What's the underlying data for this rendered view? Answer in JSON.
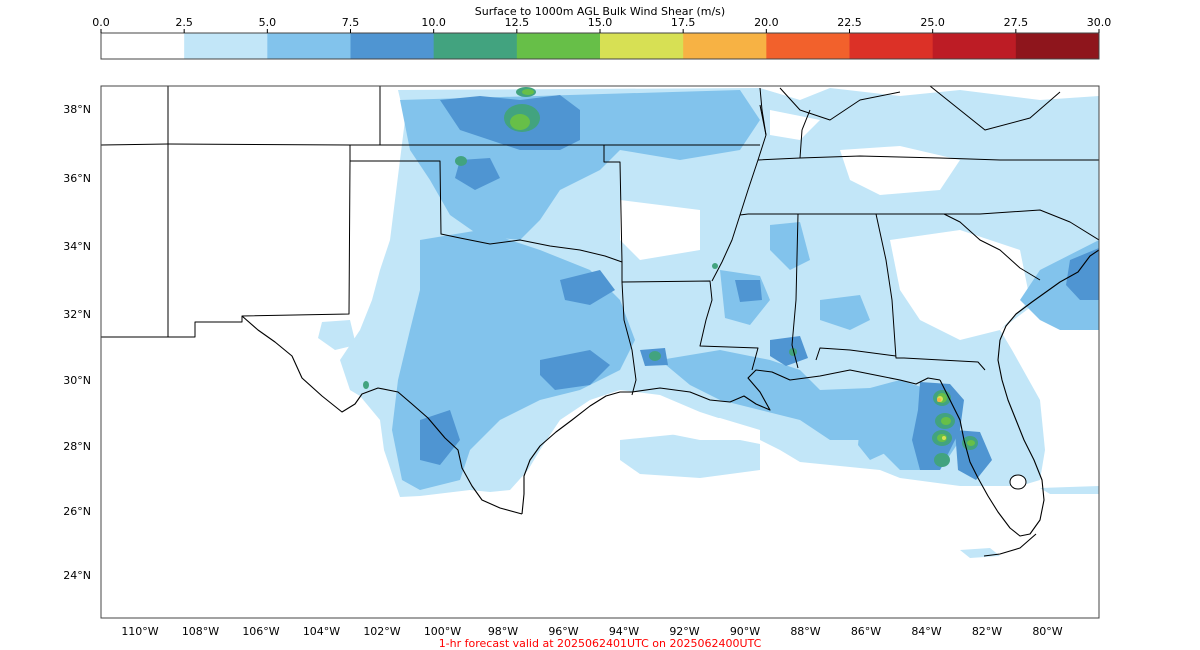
{
  "title": "Surface to 1000m AGL Bulk Wind Shear (m/s)",
  "footer": "1-hr forecast valid at 2025062401UTC on 2025062400UTC",
  "colorbar": {
    "ticks": [
      "0.0",
      "2.5",
      "5.0",
      "7.5",
      "10.0",
      "12.5",
      "15.0",
      "17.5",
      "20.0",
      "22.5",
      "25.0",
      "27.5",
      "30.0"
    ],
    "bins": [
      {
        "min": 0.0,
        "max": 2.5,
        "color": "#ffffff"
      },
      {
        "min": 2.5,
        "max": 5.0,
        "color": "#c2e6f8"
      },
      {
        "min": 5.0,
        "max": 7.5,
        "color": "#82c3ec"
      },
      {
        "min": 7.5,
        "max": 10.0,
        "color": "#4f95d2"
      },
      {
        "min": 10.0,
        "max": 12.5,
        "color": "#42a37f"
      },
      {
        "min": 12.5,
        "max": 15.0,
        "color": "#67bf48"
      },
      {
        "min": 15.0,
        "max": 17.5,
        "color": "#d7e054"
      },
      {
        "min": 17.5,
        "max": 20.0,
        "color": "#f7b244"
      },
      {
        "min": 20.0,
        "max": 22.5,
        "color": "#f2612c"
      },
      {
        "min": 22.5,
        "max": 25.0,
        "color": "#dc3127"
      },
      {
        "min": 25.0,
        "max": 27.5,
        "color": "#bd1c25"
      },
      {
        "min": 27.5,
        "max": 30.0,
        "color": "#8e151c"
      }
    ]
  },
  "axes": {
    "lon_labels": [
      "110°W",
      "108°W",
      "106°W",
      "104°W",
      "102°W",
      "100°W",
      "98°W",
      "96°W",
      "94°W",
      "92°W",
      "90°W",
      "88°W",
      "86°W",
      "84°W",
      "82°W",
      "80°W"
    ],
    "lat_labels": [
      "38°N",
      "36°N",
      "34°N",
      "32°N",
      "30°N",
      "28°N",
      "26°N",
      "24°N"
    ]
  },
  "field_colors": {
    "light": "#c2e6f8",
    "medium": "#82c3ec",
    "strong": "#4f95d2",
    "green_dark": "#42a37f",
    "green": "#67bf48",
    "yellow": "#d7e054",
    "orange": "#f7b244"
  }
}
